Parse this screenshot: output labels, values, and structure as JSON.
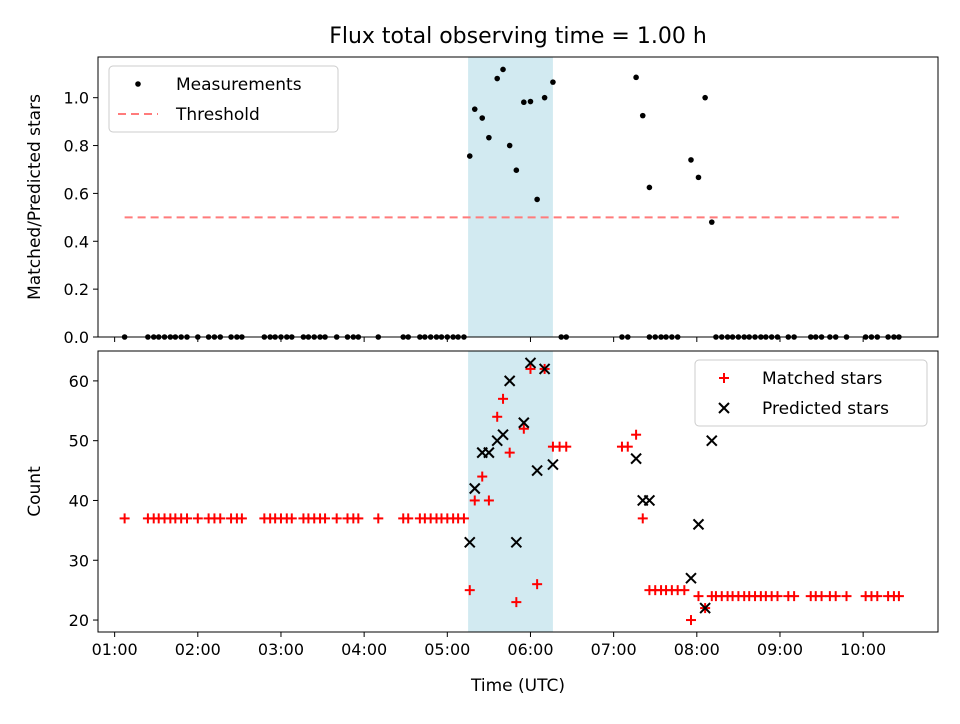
{
  "figure": {
    "title": "Flux total observing time = 1.00 h"
  },
  "chart_data": [
    {
      "type": "scatter",
      "ylabel": "Matched/Predicted stars",
      "xlabel": "",
      "xlim": [
        0.8,
        10.9
      ],
      "ylim": [
        0.0,
        1.17
      ],
      "xticks": [
        1,
        2,
        3,
        4,
        5,
        6,
        7,
        8,
        9,
        10
      ],
      "xtick_labels": [
        "",
        "",
        "",
        "",
        "",
        "",
        "",
        "",
        "",
        ""
      ],
      "yticks": [
        0.0,
        0.2,
        0.4,
        0.6,
        0.8,
        1.0
      ],
      "ytick_labels": [
        "0.0",
        "0.2",
        "0.4",
        "0.6",
        "0.8",
        "1.0"
      ],
      "highlight_span": {
        "x": [
          5.25,
          6.27
        ],
        "color": "#add8e6"
      },
      "legend": {
        "position": "top-left",
        "entries": [
          "Measurements",
          "Threshold"
        ]
      },
      "series": [
        {
          "name": "Measurements",
          "style": "dot",
          "color": "#000000",
          "points": [
            [
              1.12,
              0
            ],
            [
              1.4,
              0
            ],
            [
              1.47,
              0
            ],
            [
              1.53,
              0
            ],
            [
              1.6,
              0
            ],
            [
              1.67,
              0
            ],
            [
              1.73,
              0
            ],
            [
              1.8,
              0
            ],
            [
              1.87,
              0
            ],
            [
              2.0,
              0
            ],
            [
              2.13,
              0
            ],
            [
              2.2,
              0
            ],
            [
              2.27,
              0
            ],
            [
              2.4,
              0
            ],
            [
              2.47,
              0
            ],
            [
              2.53,
              0
            ],
            [
              2.8,
              0
            ],
            [
              2.87,
              0
            ],
            [
              2.93,
              0
            ],
            [
              3.0,
              0
            ],
            [
              3.07,
              0
            ],
            [
              3.13,
              0
            ],
            [
              3.27,
              0
            ],
            [
              3.33,
              0
            ],
            [
              3.4,
              0
            ],
            [
              3.47,
              0
            ],
            [
              3.53,
              0
            ],
            [
              3.67,
              0
            ],
            [
              3.8,
              0
            ],
            [
              3.87,
              0
            ],
            [
              3.93,
              0
            ],
            [
              4.17,
              0
            ],
            [
              4.47,
              0
            ],
            [
              4.53,
              0
            ],
            [
              4.67,
              0
            ],
            [
              4.73,
              0
            ],
            [
              4.8,
              0
            ],
            [
              4.87,
              0
            ],
            [
              4.93,
              0
            ],
            [
              5.0,
              0
            ],
            [
              5.07,
              0
            ],
            [
              5.13,
              0
            ],
            [
              5.2,
              0
            ],
            [
              6.37,
              0
            ],
            [
              6.43,
              0
            ],
            [
              7.1,
              0
            ],
            [
              7.17,
              0
            ],
            [
              7.43,
              0
            ],
            [
              7.5,
              0
            ],
            [
              7.57,
              0
            ],
            [
              7.63,
              0
            ],
            [
              7.7,
              0
            ],
            [
              7.77,
              0
            ],
            [
              8.23,
              0
            ],
            [
              8.3,
              0
            ],
            [
              8.37,
              0
            ],
            [
              8.43,
              0
            ],
            [
              8.5,
              0
            ],
            [
              8.57,
              0
            ],
            [
              8.63,
              0
            ],
            [
              8.7,
              0
            ],
            [
              8.77,
              0
            ],
            [
              8.83,
              0
            ],
            [
              8.9,
              0
            ],
            [
              8.97,
              0
            ],
            [
              9.1,
              0
            ],
            [
              9.17,
              0
            ],
            [
              9.37,
              0
            ],
            [
              9.43,
              0
            ],
            [
              9.5,
              0
            ],
            [
              9.6,
              0
            ],
            [
              9.67,
              0
            ],
            [
              9.8,
              0
            ],
            [
              10.03,
              0
            ],
            [
              10.1,
              0
            ],
            [
              10.17,
              0
            ],
            [
              10.3,
              0
            ],
            [
              10.37,
              0
            ],
            [
              10.43,
              0
            ],
            [
              5.27,
              0.756
            ],
            [
              5.33,
              0.952
            ],
            [
              5.42,
              0.915
            ],
            [
              5.5,
              0.833
            ],
            [
              5.6,
              1.08
            ],
            [
              5.67,
              1.118
            ],
            [
              5.75,
              0.8
            ],
            [
              5.83,
              0.697
            ],
            [
              5.92,
              0.981
            ],
            [
              6.0,
              0.984
            ],
            [
              6.08,
              0.575
            ],
            [
              6.17,
              1.0
            ],
            [
              6.27,
              1.065
            ],
            [
              7.27,
              1.085
            ],
            [
              7.35,
              0.925
            ],
            [
              7.43,
              0.625
            ],
            [
              7.93,
              0.74
            ],
            [
              8.02,
              0.667
            ],
            [
              8.1,
              1.0
            ],
            [
              8.18,
              0.48
            ]
          ]
        },
        {
          "name": "Threshold",
          "style": "dashed-line",
          "color": "#ff7b7b",
          "x": [
            1.12,
            10.43
          ],
          "values": [
            0.5,
            0.5
          ]
        }
      ]
    },
    {
      "type": "scatter",
      "ylabel": "Count",
      "xlabel": "Time (UTC)",
      "xlim": [
        0.8,
        10.9
      ],
      "ylim": [
        18,
        65
      ],
      "xticks": [
        1,
        2,
        3,
        4,
        5,
        6,
        7,
        8,
        9,
        10
      ],
      "xtick_labels": [
        "01:00",
        "02:00",
        "03:00",
        "04:00",
        "05:00",
        "06:00",
        "07:00",
        "08:00",
        "09:00",
        "10:00"
      ],
      "yticks": [
        20,
        30,
        40,
        50,
        60
      ],
      "ytick_labels": [
        "20",
        "30",
        "40",
        "50",
        "60"
      ],
      "highlight_span": {
        "x": [
          5.25,
          6.27
        ],
        "color": "#add8e6"
      },
      "legend": {
        "position": "top-right",
        "entries": [
          "Matched stars",
          "Predicted stars"
        ]
      },
      "series": [
        {
          "name": "Matched stars",
          "style": "plus",
          "color": "#ff0000",
          "points": [
            [
              1.12,
              37
            ],
            [
              1.4,
              37
            ],
            [
              1.47,
              37
            ],
            [
              1.53,
              37
            ],
            [
              1.6,
              37
            ],
            [
              1.67,
              37
            ],
            [
              1.73,
              37
            ],
            [
              1.8,
              37
            ],
            [
              1.87,
              37
            ],
            [
              2.0,
              37
            ],
            [
              2.13,
              37
            ],
            [
              2.2,
              37
            ],
            [
              2.27,
              37
            ],
            [
              2.4,
              37
            ],
            [
              2.47,
              37
            ],
            [
              2.53,
              37
            ],
            [
              2.8,
              37
            ],
            [
              2.87,
              37
            ],
            [
              2.93,
              37
            ],
            [
              3.0,
              37
            ],
            [
              3.07,
              37
            ],
            [
              3.13,
              37
            ],
            [
              3.27,
              37
            ],
            [
              3.33,
              37
            ],
            [
              3.4,
              37
            ],
            [
              3.47,
              37
            ],
            [
              3.53,
              37
            ],
            [
              3.67,
              37
            ],
            [
              3.8,
              37
            ],
            [
              3.87,
              37
            ],
            [
              3.93,
              37
            ],
            [
              4.17,
              37
            ],
            [
              4.47,
              37
            ],
            [
              4.53,
              37
            ],
            [
              4.67,
              37
            ],
            [
              4.73,
              37
            ],
            [
              4.8,
              37
            ],
            [
              4.87,
              37
            ],
            [
              4.93,
              37
            ],
            [
              5.0,
              37
            ],
            [
              5.07,
              37
            ],
            [
              5.13,
              37
            ],
            [
              5.2,
              37
            ],
            [
              5.27,
              25
            ],
            [
              5.33,
              40
            ],
            [
              5.42,
              44
            ],
            [
              5.5,
              40
            ],
            [
              5.6,
              54
            ],
            [
              5.67,
              57
            ],
            [
              5.75,
              48
            ],
            [
              5.83,
              23
            ],
            [
              5.92,
              52
            ],
            [
              6.0,
              62
            ],
            [
              6.08,
              26
            ],
            [
              6.17,
              62
            ],
            [
              6.27,
              49
            ],
            [
              6.35,
              49
            ],
            [
              6.43,
              49
            ],
            [
              7.1,
              49
            ],
            [
              7.17,
              49
            ],
            [
              7.27,
              51
            ],
            [
              7.35,
              37
            ],
            [
              7.43,
              25
            ],
            [
              7.5,
              25
            ],
            [
              7.57,
              25
            ],
            [
              7.63,
              25
            ],
            [
              7.7,
              25
            ],
            [
              7.77,
              25
            ],
            [
              7.85,
              25
            ],
            [
              7.93,
              20
            ],
            [
              8.02,
              24
            ],
            [
              8.1,
              22
            ],
            [
              8.18,
              24
            ],
            [
              8.23,
              24
            ],
            [
              8.3,
              24
            ],
            [
              8.37,
              24
            ],
            [
              8.43,
              24
            ],
            [
              8.5,
              24
            ],
            [
              8.57,
              24
            ],
            [
              8.63,
              24
            ],
            [
              8.7,
              24
            ],
            [
              8.77,
              24
            ],
            [
              8.83,
              24
            ],
            [
              8.9,
              24
            ],
            [
              8.97,
              24
            ],
            [
              9.1,
              24
            ],
            [
              9.17,
              24
            ],
            [
              9.37,
              24
            ],
            [
              9.43,
              24
            ],
            [
              9.5,
              24
            ],
            [
              9.6,
              24
            ],
            [
              9.67,
              24
            ],
            [
              9.8,
              24
            ],
            [
              10.03,
              24
            ],
            [
              10.1,
              24
            ],
            [
              10.17,
              24
            ],
            [
              10.3,
              24
            ],
            [
              10.37,
              24
            ],
            [
              10.43,
              24
            ]
          ]
        },
        {
          "name": "Predicted stars",
          "style": "x",
          "color": "#000000",
          "points": [
            [
              5.27,
              33
            ],
            [
              5.33,
              42
            ],
            [
              5.42,
              48
            ],
            [
              5.5,
              48
            ],
            [
              5.6,
              50
            ],
            [
              5.67,
              51
            ],
            [
              5.75,
              60
            ],
            [
              5.83,
              33
            ],
            [
              5.92,
              53
            ],
            [
              6.0,
              63
            ],
            [
              6.08,
              45
            ],
            [
              6.17,
              62
            ],
            [
              6.27,
              46
            ],
            [
              7.27,
              47
            ],
            [
              7.35,
              40
            ],
            [
              7.43,
              40
            ],
            [
              7.93,
              27
            ],
            [
              8.02,
              36
            ],
            [
              8.1,
              22
            ],
            [
              8.18,
              50
            ]
          ]
        }
      ]
    }
  ]
}
